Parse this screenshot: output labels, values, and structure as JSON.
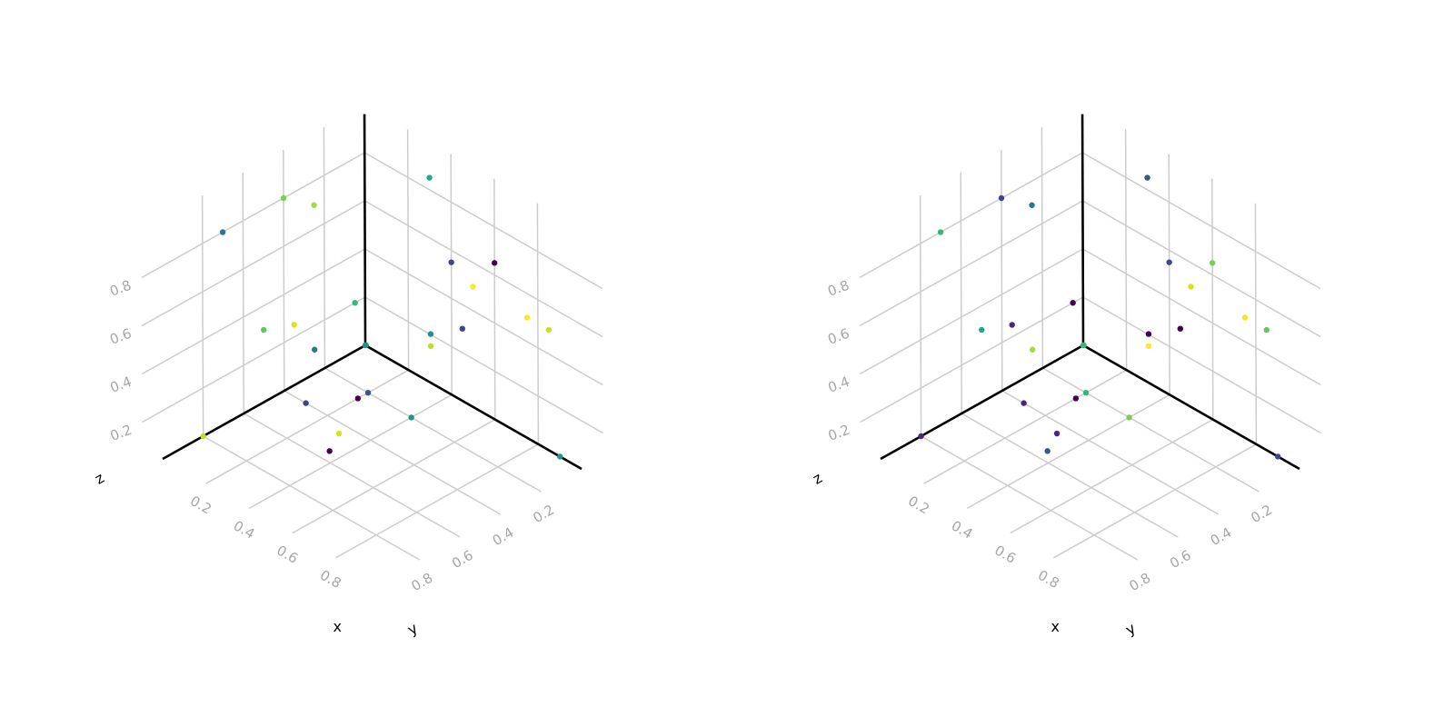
{
  "chart_data": [
    {
      "type": "scatter",
      "projection": "3d",
      "xlabel": "x",
      "ylabel": "y",
      "zlabel": "z",
      "xlim": [
        0,
        1
      ],
      "ylim": [
        0,
        1
      ],
      "zlim": [
        0,
        1
      ],
      "grid": true,
      "ticks": {
        "x": [
          "0.2",
          "0.4",
          "0.6",
          "0.8"
        ],
        "y": [
          "0.2",
          "0.4",
          "0.6",
          "0.8"
        ],
        "z": [
          "0.2",
          "0.4",
          "0.6",
          "0.8"
        ]
      },
      "points": [
        {
          "x": 0.9,
          "y": 0.0,
          "z": 0.0,
          "color": "#21918c"
        },
        {
          "x": 0.0,
          "y": 0.8,
          "z": 0.0,
          "color": "#bddf26"
        },
        {
          "x": 0.35,
          "y": 0.55,
          "z": 0.0,
          "color": "#440154"
        },
        {
          "x": 0.3,
          "y": 0.45,
          "z": 0.0,
          "color": "#d2e21b"
        },
        {
          "x": 0.1,
          "y": 0.4,
          "z": 0.0,
          "color": "#414487"
        },
        {
          "x": 0.35,
          "y": 0.05,
          "z": 0.2,
          "color": "#bddf26"
        },
        {
          "x": 0.4,
          "y": 0.2,
          "z": 0.0,
          "color": "#21918c"
        },
        {
          "x": 0.2,
          "y": 0.25,
          "z": 0.0,
          "color": "#440154"
        },
        {
          "x": 0.2,
          "y": 0.2,
          "z": 0.0,
          "color": "#3b528b"
        },
        {
          "x": 0.05,
          "y": 0.05,
          "z": 0.05,
          "color": "#21918c"
        },
        {
          "x": 0.35,
          "y": 0.05,
          "z": 0.25,
          "color": "#21918c"
        },
        {
          "x": 0.0,
          "y": 0.25,
          "z": 0.1,
          "color": "#2a788e"
        },
        {
          "x": 0.0,
          "y": 0.05,
          "z": 0.2,
          "color": "#35b779"
        },
        {
          "x": 0.0,
          "y": 0.35,
          "z": 0.25,
          "color": "#dde318"
        },
        {
          "x": 0.0,
          "y": 0.5,
          "z": 0.3,
          "color": "#5ec962"
        },
        {
          "x": 0.0,
          "y": 0.4,
          "z": 0.8,
          "color": "#7ad151"
        },
        {
          "x": 0.0,
          "y": 0.25,
          "z": 0.7,
          "color": "#a5db36"
        },
        {
          "x": 0.0,
          "y": 0.7,
          "z": 0.8,
          "color": "#2a788e"
        },
        {
          "x": 0.3,
          "y": 0.0,
          "z": 0.85,
          "color": "#22a884"
        },
        {
          "x": 0.4,
          "y": 0.0,
          "z": 0.55,
          "color": "#414487"
        },
        {
          "x": 0.45,
          "y": 0.0,
          "z": 0.3,
          "color": "#404688"
        },
        {
          "x": 0.0,
          "y": 0.0,
          "z": 0.0,
          "color": "#21918c"
        },
        {
          "x": 0.5,
          "y": 0.0,
          "z": 0.5,
          "color": "#fde725"
        },
        {
          "x": 0.6,
          "y": 0.0,
          "z": 0.65,
          "color": "#440154"
        },
        {
          "x": 0.75,
          "y": 0.0,
          "z": 0.5,
          "color": "#fde725"
        },
        {
          "x": 0.85,
          "y": 0.0,
          "z": 0.5,
          "color": "#c8e020"
        }
      ]
    },
    {
      "type": "scatter",
      "projection": "3d",
      "xlabel": "x",
      "ylabel": "y",
      "zlabel": "z",
      "xlim": [
        0,
        1
      ],
      "ylim": [
        0,
        1
      ],
      "zlim": [
        0,
        1
      ],
      "grid": true,
      "ticks": {
        "x": [
          "0.2",
          "0.4",
          "0.6",
          "0.8"
        ],
        "y": [
          "0.2",
          "0.4",
          "0.6",
          "0.8"
        ],
        "z": [
          "0.2",
          "0.4",
          "0.6",
          "0.8"
        ]
      },
      "points": [
        {
          "x": 0.9,
          "y": 0.0,
          "z": 0.0,
          "color": "#414487"
        },
        {
          "x": 0.0,
          "y": 0.8,
          "z": 0.0,
          "color": "#482878"
        },
        {
          "x": 0.35,
          "y": 0.55,
          "z": 0.0,
          "color": "#3b528b"
        },
        {
          "x": 0.3,
          "y": 0.45,
          "z": 0.0,
          "color": "#482878"
        },
        {
          "x": 0.1,
          "y": 0.4,
          "z": 0.0,
          "color": "#482878"
        },
        {
          "x": 0.35,
          "y": 0.05,
          "z": 0.2,
          "color": "#fde725"
        },
        {
          "x": 0.4,
          "y": 0.2,
          "z": 0.0,
          "color": "#7ad151"
        },
        {
          "x": 0.2,
          "y": 0.25,
          "z": 0.0,
          "color": "#440154"
        },
        {
          "x": 0.2,
          "y": 0.2,
          "z": 0.0,
          "color": "#35b779"
        },
        {
          "x": 0.05,
          "y": 0.05,
          "z": 0.05,
          "color": "#5ec962"
        },
        {
          "x": 0.35,
          "y": 0.05,
          "z": 0.25,
          "color": "#440154"
        },
        {
          "x": 0.0,
          "y": 0.25,
          "z": 0.1,
          "color": "#a5db36"
        },
        {
          "x": 0.0,
          "y": 0.05,
          "z": 0.2,
          "color": "#440154"
        },
        {
          "x": 0.0,
          "y": 0.35,
          "z": 0.25,
          "color": "#482878"
        },
        {
          "x": 0.0,
          "y": 0.5,
          "z": 0.3,
          "color": "#22a884"
        },
        {
          "x": 0.0,
          "y": 0.4,
          "z": 0.8,
          "color": "#414487"
        },
        {
          "x": 0.0,
          "y": 0.25,
          "z": 0.7,
          "color": "#2a788e"
        },
        {
          "x": 0.0,
          "y": 0.7,
          "z": 0.8,
          "color": "#35b779"
        },
        {
          "x": 0.3,
          "y": 0.0,
          "z": 0.85,
          "color": "#3b528b"
        },
        {
          "x": 0.4,
          "y": 0.0,
          "z": 0.55,
          "color": "#404688"
        },
        {
          "x": 0.45,
          "y": 0.0,
          "z": 0.3,
          "color": "#440154"
        },
        {
          "x": 0.0,
          "y": 0.0,
          "z": 0.0,
          "color": "#35b779"
        },
        {
          "x": 0.5,
          "y": 0.0,
          "z": 0.5,
          "color": "#d2e21b"
        },
        {
          "x": 0.6,
          "y": 0.0,
          "z": 0.65,
          "color": "#7ad151"
        },
        {
          "x": 0.75,
          "y": 0.0,
          "z": 0.5,
          "color": "#f4e61e"
        },
        {
          "x": 0.85,
          "y": 0.0,
          "z": 0.5,
          "color": "#5ec962"
        }
      ]
    }
  ]
}
